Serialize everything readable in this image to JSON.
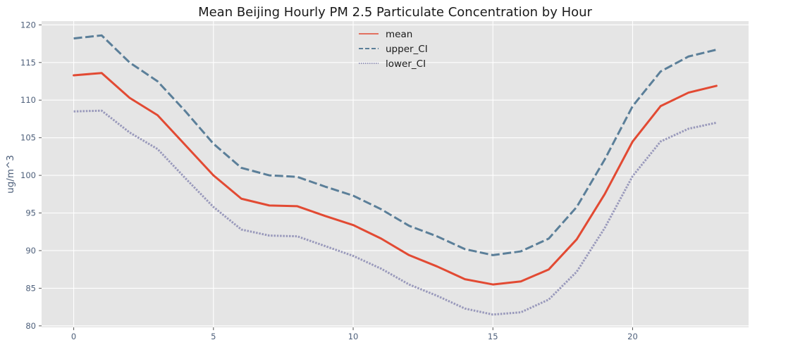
{
  "chart_data": {
    "type": "line",
    "title": "Mean Beijing Hourly PM 2.5 Particulate Concentration by Hour",
    "xlabel": "",
    "ylabel": "ug/m^3",
    "x": [
      0,
      1,
      2,
      3,
      4,
      5,
      6,
      7,
      8,
      9,
      10,
      11,
      12,
      13,
      14,
      15,
      16,
      17,
      18,
      19,
      20,
      21,
      22,
      23
    ],
    "xlim": [
      -1.15,
      24.15
    ],
    "ylim": [
      79.8,
      120.5
    ],
    "xticks": [
      0,
      5,
      10,
      15,
      20
    ],
    "yticks": [
      80,
      85,
      90,
      95,
      100,
      105,
      110,
      115,
      120
    ],
    "grid": true,
    "legend_position": "top-center",
    "background_color": "#e5e5e5",
    "series": [
      {
        "name": "mean",
        "color": "#e24a33",
        "style": "solid",
        "values": [
          113.3,
          113.6,
          110.3,
          108.0,
          104.0,
          100.0,
          96.9,
          96.0,
          95.9,
          94.6,
          93.4,
          91.6,
          89.4,
          87.9,
          86.2,
          85.5,
          85.9,
          87.5,
          91.5,
          97.5,
          104.5,
          109.2,
          111.0,
          111.9
        ]
      },
      {
        "name": "upper_CI",
        "color": "#5b7f99",
        "style": "dashed",
        "values": [
          118.2,
          118.6,
          115.0,
          112.5,
          108.5,
          104.2,
          101.0,
          100.0,
          99.8,
          98.5,
          97.3,
          95.5,
          93.3,
          91.9,
          90.2,
          89.4,
          89.9,
          91.6,
          95.8,
          102.1,
          109.2,
          113.8,
          115.8,
          116.7
        ]
      },
      {
        "name": "lower_CI",
        "color": "#9999bb",
        "style": "dotted",
        "values": [
          108.5,
          108.6,
          105.7,
          103.5,
          99.6,
          95.8,
          92.8,
          92.0,
          91.9,
          90.6,
          89.3,
          87.6,
          85.5,
          84.0,
          82.3,
          81.5,
          81.8,
          83.5,
          87.2,
          93.0,
          99.9,
          104.5,
          106.2,
          107.0
        ]
      }
    ]
  }
}
